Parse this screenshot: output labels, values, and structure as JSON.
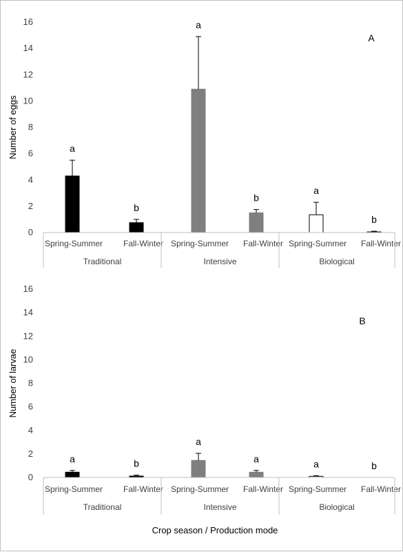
{
  "x_axis_label": "Crop season / Production mode",
  "chart_data": [
    {
      "type": "bar",
      "panel_label": "A",
      "ylabel": "Number of eggs",
      "xlabel": "Crop season / Production mode",
      "ylim": [
        0,
        16
      ],
      "yticks": [
        0,
        2,
        4,
        6,
        8,
        10,
        12,
        14,
        16
      ],
      "groups": [
        "Traditional",
        "Intensive",
        "Biological"
      ],
      "categories": [
        "Spring-Summer",
        "Fall-Winter",
        "Spring-Summer",
        "Fall-Winter",
        "Spring-Summer",
        "Fall-Winter"
      ],
      "values": [
        4.3,
        0.75,
        10.9,
        1.5,
        1.35,
        0.05
      ],
      "errors": [
        1.2,
        0.25,
        4.0,
        0.25,
        0.95,
        0.05
      ],
      "letters": [
        "a",
        "b",
        "a",
        "b",
        "a",
        "b"
      ],
      "colors": [
        "#000000",
        "#000000",
        "#7f7f7f",
        "#7f7f7f",
        "#ffffff",
        "#ffffff"
      ],
      "grid": false
    },
    {
      "type": "bar",
      "panel_label": "B",
      "ylabel": "Number of larvae",
      "xlabel": "Crop season / Production mode",
      "ylim": [
        0,
        16
      ],
      "yticks": [
        0,
        2,
        4,
        6,
        8,
        10,
        12,
        14,
        16
      ],
      "groups": [
        "Traditional",
        "Intensive",
        "Biological"
      ],
      "categories": [
        "Spring-Summer",
        "Fall-Winter",
        "Spring-Summer",
        "Fall-Winter",
        "Spring-Summer",
        "Fall-Winter"
      ],
      "values": [
        0.45,
        0.12,
        1.45,
        0.45,
        0.1,
        0.0
      ],
      "errors": [
        0.15,
        0.08,
        0.6,
        0.15,
        0.05,
        0.0
      ],
      "letters": [
        "a",
        "b",
        "a",
        "a",
        "a",
        "b"
      ],
      "colors": [
        "#000000",
        "#000000",
        "#7f7f7f",
        "#7f7f7f",
        "#ffffff",
        "#ffffff"
      ],
      "grid": false
    }
  ]
}
